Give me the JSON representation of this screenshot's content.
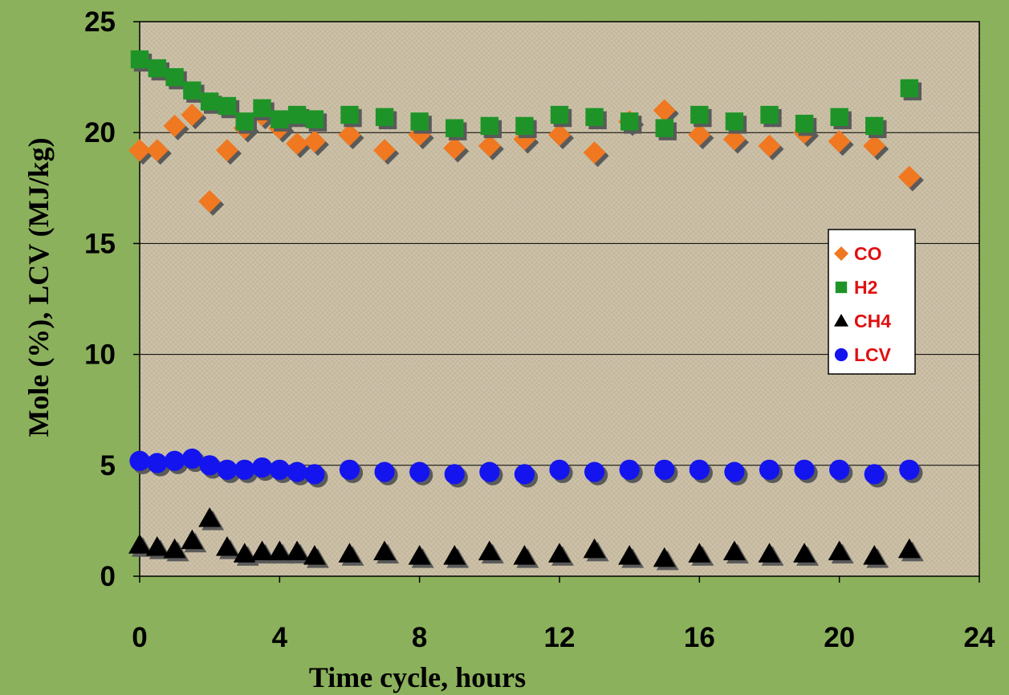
{
  "chart_data": {
    "type": "scatter",
    "title": "",
    "xlabel": "Time cycle, hours",
    "ylabel": "Mole (%), LCV (MJ/kg)",
    "xlim": [
      0,
      24
    ],
    "ylim": [
      0,
      25
    ],
    "xticks": [
      "0",
      "4",
      "8",
      "12",
      "16",
      "20",
      "24"
    ],
    "yticks": [
      "0",
      "5",
      "10",
      "15",
      "20",
      "25"
    ],
    "grid": "horizontal",
    "legend_position": "right",
    "background_color": "#8bb15c",
    "plot_area_color": "#cdc2a8",
    "series": [
      {
        "name": "CO",
        "marker": "diamond",
        "color": "#f07820",
        "x": [
          0,
          0.5,
          1,
          1.5,
          2,
          2.5,
          3,
          3.5,
          4,
          4.5,
          5,
          6,
          7,
          8,
          9,
          10,
          11,
          12,
          13,
          14,
          15,
          16,
          17,
          18,
          19,
          20,
          21,
          22
        ],
        "y": [
          19.2,
          19.2,
          20.3,
          20.8,
          16.9,
          19.2,
          20.2,
          20.8,
          20.2,
          19.5,
          19.6,
          19.9,
          19.2,
          19.9,
          19.3,
          19.4,
          19.7,
          19.9,
          19.1,
          20.5,
          21.0,
          19.9,
          19.7,
          19.4,
          20.0,
          19.6,
          19.4,
          18.0
        ]
      },
      {
        "name": "H2",
        "marker": "square",
        "color": "#1e9428",
        "x": [
          0,
          0.5,
          1,
          1.5,
          2,
          2.5,
          3,
          3.5,
          4,
          4.5,
          5,
          6,
          7,
          8,
          9,
          10,
          11,
          12,
          13,
          14,
          15,
          16,
          17,
          18,
          19,
          20,
          21,
          22
        ],
        "y": [
          23.3,
          22.9,
          22.5,
          21.9,
          21.4,
          21.2,
          20.5,
          21.1,
          20.6,
          20.8,
          20.6,
          20.8,
          20.7,
          20.5,
          20.2,
          20.3,
          20.3,
          20.8,
          20.7,
          20.5,
          20.2,
          20.8,
          20.5,
          20.8,
          20.4,
          20.7,
          20.3,
          22.0
        ]
      },
      {
        "name": "CH4",
        "marker": "triangle",
        "color": "#000000",
        "x": [
          0,
          0.5,
          1,
          1.5,
          2,
          2.5,
          3,
          3.5,
          4,
          4.5,
          5,
          6,
          7,
          8,
          9,
          10,
          11,
          12,
          13,
          14,
          15,
          16,
          17,
          18,
          19,
          20,
          21,
          22
        ],
        "y": [
          1.4,
          1.3,
          1.2,
          1.6,
          2.6,
          1.3,
          1.0,
          1.1,
          1.1,
          1.1,
          0.9,
          1.0,
          1.1,
          0.9,
          0.9,
          1.1,
          0.9,
          1.0,
          1.2,
          0.9,
          0.8,
          1.0,
          1.1,
          1.0,
          1.0,
          1.1,
          0.9,
          1.2
        ]
      },
      {
        "name": "LCV",
        "marker": "circle",
        "color": "#1414ee",
        "x": [
          0,
          0.5,
          1,
          1.5,
          2,
          2.5,
          3,
          3.5,
          4,
          4.5,
          5,
          6,
          7,
          8,
          9,
          10,
          11,
          12,
          13,
          14,
          15,
          16,
          17,
          18,
          19,
          20,
          21,
          22
        ],
        "y": [
          5.2,
          5.1,
          5.2,
          5.3,
          5.0,
          4.8,
          4.8,
          4.9,
          4.8,
          4.7,
          4.6,
          4.8,
          4.7,
          4.7,
          4.6,
          4.7,
          4.6,
          4.8,
          4.7,
          4.8,
          4.8,
          4.8,
          4.7,
          4.8,
          4.8,
          4.8,
          4.6,
          4.8
        ]
      }
    ]
  }
}
